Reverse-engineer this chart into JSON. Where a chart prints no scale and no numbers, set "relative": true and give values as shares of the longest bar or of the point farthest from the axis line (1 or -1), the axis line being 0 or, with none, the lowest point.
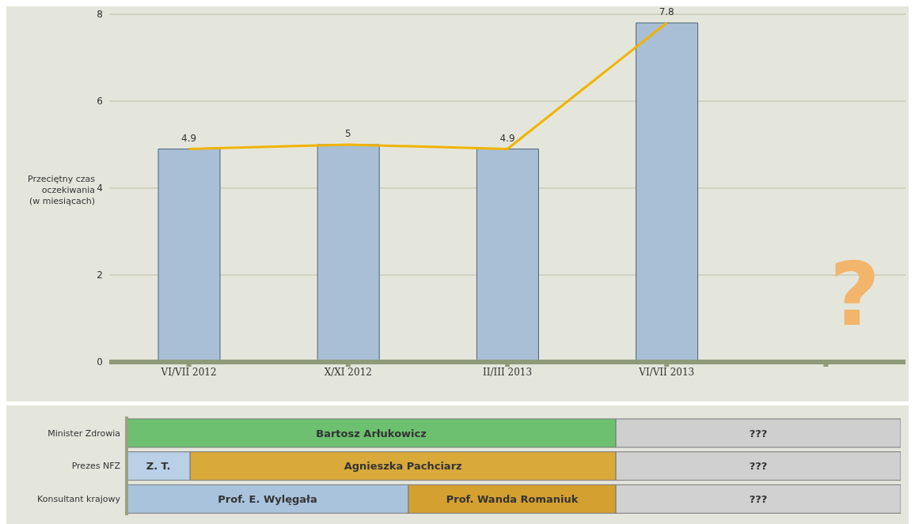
{
  "chart_data": [
    {
      "type": "bar",
      "ylabel": "Przeciętny czas oczekiwania (w miesiącach)",
      "categories": [
        "VI/VII 2012",
        "X/XI 2012",
        "II/III 2013",
        "VI/VII 2013",
        null
      ],
      "series": [
        {
          "color": "#a9bfd6",
          "values": [
            4.9,
            5,
            4.9,
            7.8,
            null
          ]
        },
        {
          "type": "line",
          "color": "#f0b400",
          "values": [
            4.9,
            5,
            4.9,
            7.8,
            null
          ],
          "value_labels": [
            "4.9",
            "5",
            "4.9",
            "7.8",
            null
          ]
        }
      ],
      "ylim": [
        0,
        8
      ],
      "yticks": [
        0,
        2,
        4,
        6,
        8
      ],
      "grid": "y",
      "marker": "none",
      "annotations": [
        "?"
      ]
    },
    {
      "type": "bar",
      "orientation": "horizontal",
      "stacked": true,
      "relative": true,
      "categories": [
        "Minister Zdrowia",
        "Prezes NFZ",
        "Konsultant krajowy"
      ],
      "series": [
        {
          "name": "Bartosz Arłukowicz",
          "color": "#6cc070",
          "values": [
            0.632,
            null,
            null
          ]
        },
        {
          "name": "Z. T.",
          "color": "#b9d0e6",
          "values": [
            null,
            0.082,
            null
          ]
        },
        {
          "name": "Prof. E. Wylęgała",
          "color": "#a9c3dc",
          "values": [
            null,
            null,
            0.364
          ]
        },
        {
          "name": "Agnieszka Pachciarz",
          "color": "#d9a93a",
          "values": [
            null,
            0.55,
            null
          ]
        },
        {
          "name": "Prof. Wanda Romaniuk",
          "color": "#d4a030",
          "values": [
            null,
            null,
            0.268
          ]
        },
        {
          "name": "???",
          "color": "#cfcfcf",
          "values": [
            0.368,
            null,
            null
          ]
        },
        {
          "name": "???",
          "color": "#d0d0d0",
          "values": [
            null,
            0.368,
            null
          ]
        },
        {
          "name": "???",
          "color": "#d1d1d1",
          "values": [
            null,
            null,
            0.368
          ]
        }
      ]
    }
  ]
}
